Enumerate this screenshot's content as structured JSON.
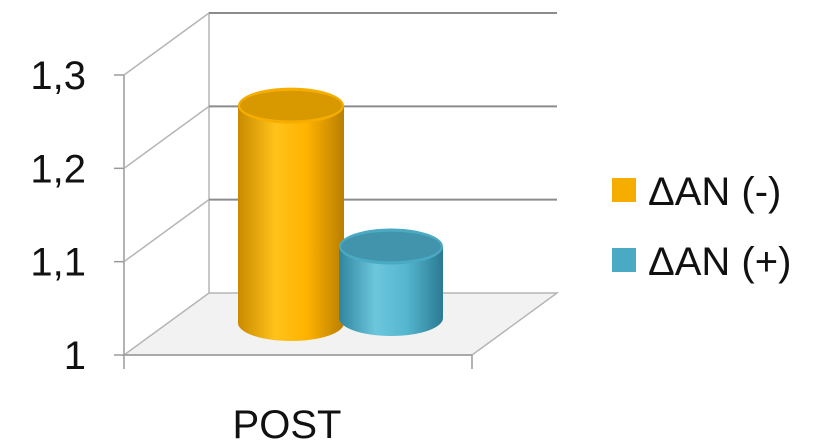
{
  "chart_data": {
    "type": "bar",
    "style": "3d-cylinder",
    "categories": [
      "POST"
    ],
    "series": [
      {
        "name": "ΔAN (-)",
        "values": [
          1.234
        ],
        "color": "#f5ae00"
      },
      {
        "name": "ΔAN (+)",
        "values": [
          1.083
        ],
        "color": "#4aa9c3"
      }
    ],
    "yticks": [
      "1",
      "1,1",
      "1,2",
      "1,3"
    ],
    "ylim": [
      1,
      1.3
    ],
    "grid": true,
    "legend": "right",
    "title": "",
    "xlabel": "",
    "ylabel": ""
  }
}
